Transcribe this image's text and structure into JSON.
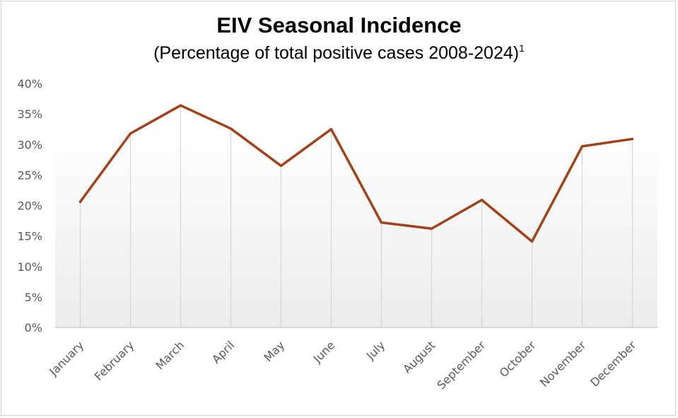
{
  "chart_data": {
    "type": "line",
    "title": "EIV Seasonal Incidence",
    "subtitle": "(Percentage of total positive cases 2008-2024)",
    "subtitle_superscript": "1",
    "categories": [
      "January",
      "February",
      "March",
      "April",
      "May",
      "June",
      "July",
      "August",
      "September",
      "October",
      "November",
      "December"
    ],
    "series": [
      {
        "values": [
          20.6,
          31.8,
          36.4,
          32.6,
          26.5,
          32.5,
          17.2,
          16.2,
          20.9,
          14.1,
          29.7,
          30.9
        ],
        "color": "#a0421a"
      }
    ],
    "y_ticks": [
      "0%",
      "5%",
      "10%",
      "15%",
      "20%",
      "25%",
      "30%",
      "35%",
      "40%"
    ],
    "ylim": [
      0,
      40
    ],
    "xlabel": "",
    "ylabel": "",
    "grid": "vertical",
    "legend": "none"
  }
}
